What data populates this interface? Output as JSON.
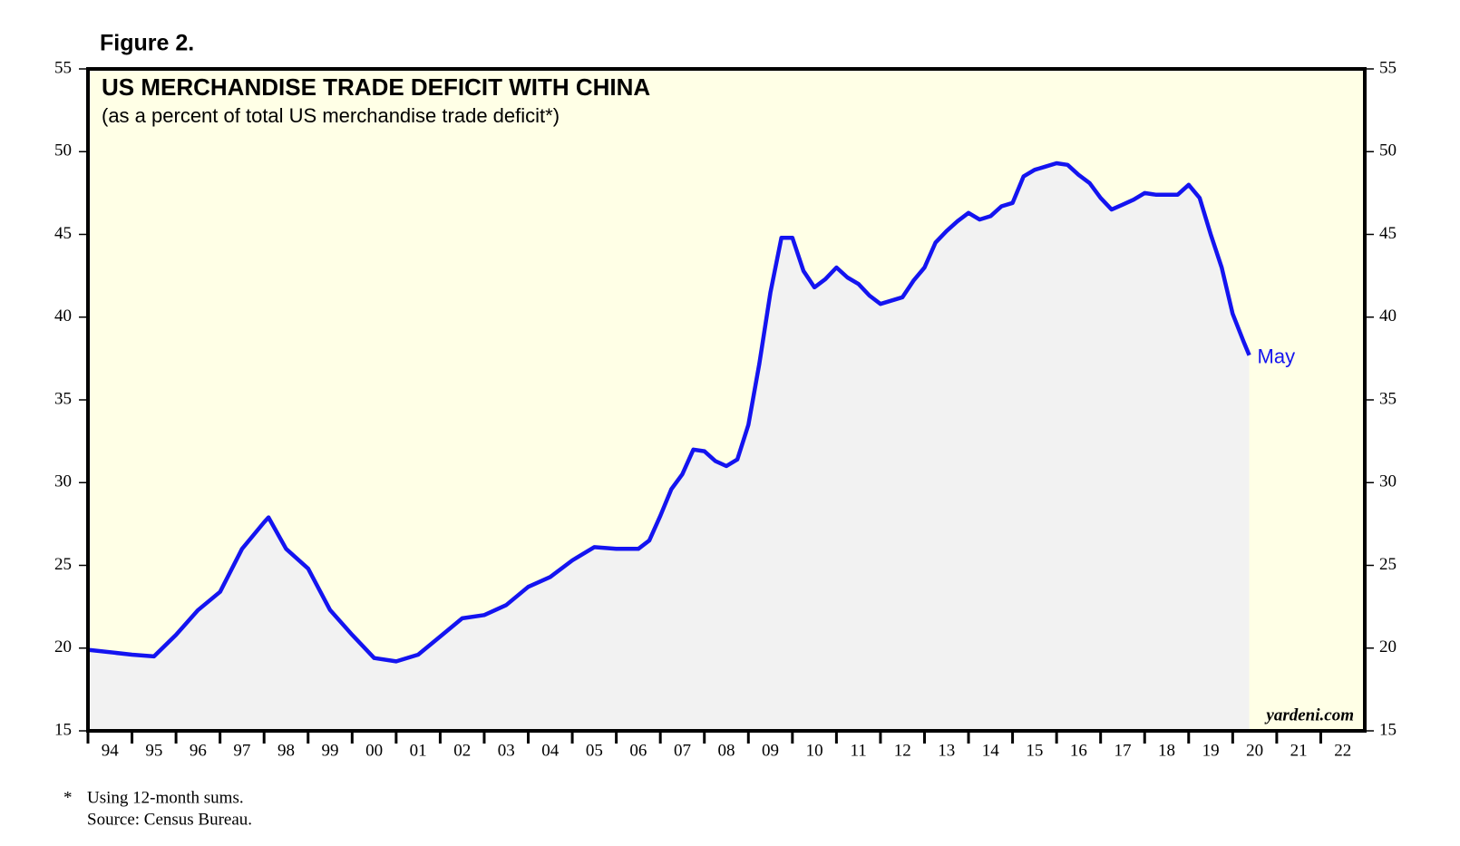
{
  "figure_label": "Figure 2.",
  "footnote": {
    "marker": "*",
    "lines": [
      "Using 12-month sums.",
      "Source: Census Bureau."
    ]
  },
  "chart_data": {
    "type": "line",
    "title": "US MERCHANDISE TRADE DEFICIT WITH CHINA",
    "subtitle": "(as a percent of total US merchandise trade deficit*)",
    "credit": "yardeni.com",
    "annotations": [
      {
        "text": "May"
      }
    ],
    "x": [
      1994,
      1995,
      1995.5,
      1996,
      1996.5,
      1997,
      1997.5,
      1998,
      1998.1,
      1998.5,
      1999,
      1999.5,
      2000,
      2000.5,
      2001,
      2001.5,
      2002,
      2002.5,
      2003,
      2003.5,
      2004,
      2004.5,
      2005,
      2005.5,
      2006,
      2006.5,
      2006.75,
      2007,
      2007.25,
      2007.5,
      2007.75,
      2008,
      2008.25,
      2008.5,
      2008.75,
      2009,
      2009.25,
      2009.5,
      2009.75,
      2010,
      2010.25,
      2010.5,
      2010.75,
      2011,
      2011.25,
      2011.5,
      2011.75,
      2012,
      2012.5,
      2012.75,
      2013,
      2013.25,
      2013.5,
      2013.75,
      2014,
      2014.25,
      2014.5,
      2014.75,
      2015,
      2015.25,
      2015.5,
      2015.75,
      2016,
      2016.25,
      2016.5,
      2016.75,
      2017,
      2017.25,
      2017.5,
      2017.75,
      2018,
      2018.25,
      2018.5,
      2018.75,
      2019,
      2019.25,
      2019.5,
      2019.75,
      2020,
      2020.25,
      2020.375
    ],
    "series": [
      {
        "name": "US merchandise trade deficit with China",
        "color": "#1414f0",
        "values": [
          19.9,
          19.6,
          19.5,
          20.8,
          22.3,
          23.4,
          26.0,
          27.6,
          27.9,
          26.0,
          24.8,
          22.3,
          20.8,
          19.4,
          19.2,
          19.6,
          20.7,
          21.8,
          22.0,
          22.6,
          23.7,
          24.3,
          25.3,
          26.1,
          26.0,
          26.0,
          26.5,
          28.0,
          29.6,
          30.5,
          32.0,
          31.9,
          31.3,
          31.0,
          31.4,
          33.5,
          37.2,
          41.5,
          44.8,
          44.8,
          42.8,
          41.8,
          42.3,
          43.0,
          42.4,
          42.0,
          41.3,
          40.8,
          41.2,
          42.2,
          43.0,
          44.5,
          45.2,
          45.8,
          46.3,
          45.9,
          46.1,
          46.7,
          46.9,
          48.5,
          48.9,
          49.1,
          49.3,
          49.2,
          48.6,
          48.1,
          47.2,
          46.5,
          46.8,
          47.1,
          47.5,
          47.4,
          47.4,
          47.4,
          48.0,
          47.2,
          45.0,
          43.0,
          40.2,
          38.5,
          37.7
        ]
      }
    ],
    "xlim": [
      1994,
      2023
    ],
    "xticks": [
      {
        "value": 1994,
        "label": "94"
      },
      {
        "value": 1995,
        "label": "95"
      },
      {
        "value": 1996,
        "label": "96"
      },
      {
        "value": 1997,
        "label": "97"
      },
      {
        "value": 1998,
        "label": "98"
      },
      {
        "value": 1999,
        "label": "99"
      },
      {
        "value": 2000,
        "label": "00"
      },
      {
        "value": 2001,
        "label": "01"
      },
      {
        "value": 2002,
        "label": "02"
      },
      {
        "value": 2003,
        "label": "03"
      },
      {
        "value": 2004,
        "label": "04"
      },
      {
        "value": 2005,
        "label": "05"
      },
      {
        "value": 2006,
        "label": "06"
      },
      {
        "value": 2007,
        "label": "07"
      },
      {
        "value": 2008,
        "label": "08"
      },
      {
        "value": 2009,
        "label": "09"
      },
      {
        "value": 2010,
        "label": "10"
      },
      {
        "value": 2011,
        "label": "11"
      },
      {
        "value": 2012,
        "label": "12"
      },
      {
        "value": 2013,
        "label": "13"
      },
      {
        "value": 2014,
        "label": "14"
      },
      {
        "value": 2015,
        "label": "15"
      },
      {
        "value": 2016,
        "label": "16"
      },
      {
        "value": 2017,
        "label": "17"
      },
      {
        "value": 2018,
        "label": "18"
      },
      {
        "value": 2019,
        "label": "19"
      },
      {
        "value": 2020,
        "label": "20"
      },
      {
        "value": 2021,
        "label": "21"
      },
      {
        "value": 2022,
        "label": "22"
      }
    ],
    "ylim": [
      15,
      55
    ],
    "yticks": [
      15,
      20,
      25,
      30,
      35,
      40,
      45,
      50,
      55
    ],
    "y2lim": [
      15,
      55
    ],
    "y2ticks": [
      15,
      20,
      25,
      30,
      35,
      40,
      45,
      50,
      55
    ],
    "grid": false
  }
}
